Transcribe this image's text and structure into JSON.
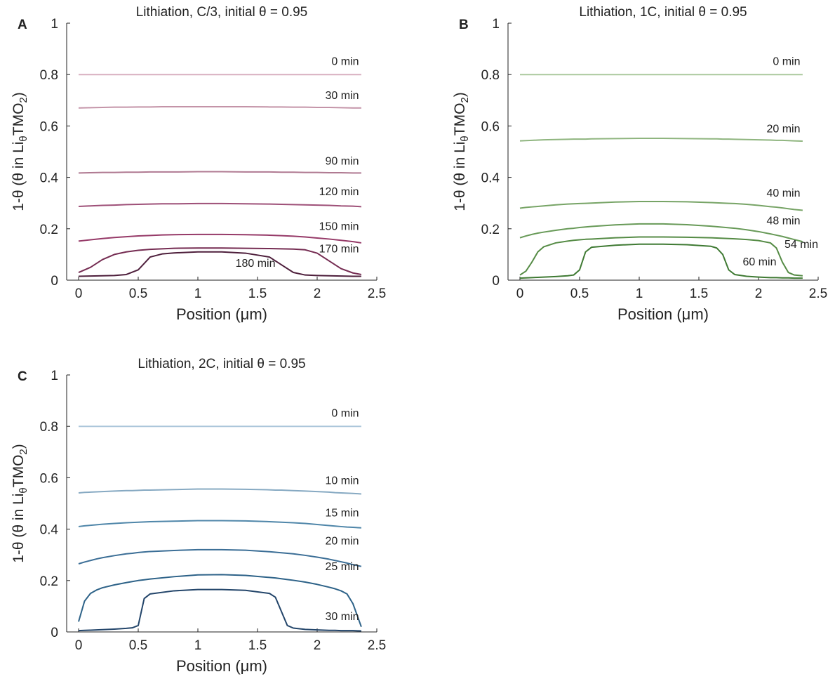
{
  "chart_data": [
    {
      "type": "line",
      "panel_label": "A",
      "title": "Lithiation, C/3, initial θ = 0.95",
      "xlabel": "Position (μm)",
      "ylabel": [
        "1-θ (θ in Li",
        "θ",
        "TMO",
        "2",
        ")"
      ],
      "xlim": [
        -0.1,
        2.5
      ],
      "ylim": [
        0,
        1
      ],
      "xticks": [
        0,
        0.5,
        1,
        1.5,
        2,
        2.5
      ],
      "yticks": [
        0,
        0.2,
        0.4,
        0.6,
        0.8,
        1
      ],
      "x": [
        0,
        0.1,
        0.2,
        0.3,
        0.4,
        0.5,
        0.6,
        0.7,
        0.8,
        1,
        1.2,
        1.4,
        1.6,
        1.7,
        1.8,
        1.9,
        2,
        2.1,
        2.2,
        2.3,
        2.37
      ],
      "series": [
        {
          "name": "0 min",
          "color": "#d8afc0",
          "values": [
            0.8,
            0.8,
            0.8,
            0.8,
            0.8,
            0.8,
            0.8,
            0.8,
            0.8,
            0.8,
            0.8,
            0.8,
            0.8,
            0.8,
            0.8,
            0.8,
            0.8,
            0.8,
            0.8,
            0.8,
            0.8
          ]
        },
        {
          "name": "30 min",
          "color": "#c494a8",
          "values": [
            0.67,
            0.671,
            0.672,
            0.673,
            0.673,
            0.674,
            0.674,
            0.675,
            0.675,
            0.675,
            0.675,
            0.675,
            0.674,
            0.674,
            0.673,
            0.673,
            0.672,
            0.672,
            0.671,
            0.67,
            0.67
          ]
        },
        {
          "name": "90 min",
          "color": "#b07a92",
          "values": [
            0.417,
            0.418,
            0.419,
            0.419,
            0.42,
            0.42,
            0.421,
            0.421,
            0.421,
            0.422,
            0.422,
            0.421,
            0.421,
            0.42,
            0.42,
            0.419,
            0.419,
            0.418,
            0.418,
            0.417,
            0.417
          ]
        },
        {
          "name": "120 min",
          "color": "#9e5078",
          "values": [
            0.287,
            0.289,
            0.291,
            0.292,
            0.294,
            0.295,
            0.296,
            0.297,
            0.297,
            0.298,
            0.298,
            0.297,
            0.296,
            0.295,
            0.294,
            0.293,
            0.292,
            0.291,
            0.289,
            0.288,
            0.286
          ]
        },
        {
          "name": "150 min",
          "color": "#963a68",
          "values": [
            0.152,
            0.157,
            0.162,
            0.166,
            0.169,
            0.172,
            0.174,
            0.176,
            0.177,
            0.178,
            0.178,
            0.177,
            0.175,
            0.173,
            0.171,
            0.168,
            0.164,
            0.16,
            0.155,
            0.15,
            0.145
          ]
        },
        {
          "name": "170 min",
          "color": "#752c52",
          "values": [
            0.03,
            0.05,
            0.08,
            0.1,
            0.11,
            0.116,
            0.12,
            0.122,
            0.124,
            0.125,
            0.125,
            0.124,
            0.123,
            0.122,
            0.121,
            0.118,
            0.105,
            0.075,
            0.045,
            0.028,
            0.022
          ]
        },
        {
          "name": "180 min",
          "color": "#4e1f3c",
          "values": [
            0.015,
            0.016,
            0.017,
            0.018,
            0.022,
            0.04,
            0.09,
            0.102,
            0.106,
            0.11,
            0.11,
            0.105,
            0.09,
            0.06,
            0.03,
            0.02,
            0.018,
            0.017,
            0.016,
            0.015,
            0.015
          ]
        }
      ]
    },
    {
      "type": "line",
      "panel_label": "B",
      "title": "Lithiation, 1C, initial θ = 0.95",
      "xlabel": "Position (μm)",
      "ylabel": [
        "1-θ (θ in Li",
        "θ",
        "TMO",
        "2",
        ")"
      ],
      "xlim": [
        -0.1,
        2.5
      ],
      "ylim": [
        0,
        1
      ],
      "xticks": [
        0,
        0.5,
        1,
        1.5,
        2,
        2.5
      ],
      "yticks": [
        0,
        0.2,
        0.4,
        0.6,
        0.8,
        1
      ],
      "x": [
        0,
        0.05,
        0.1,
        0.15,
        0.2,
        0.3,
        0.4,
        0.45,
        0.5,
        0.55,
        0.6,
        0.8,
        1,
        1.2,
        1.4,
        1.6,
        1.65,
        1.7,
        1.75,
        1.8,
        1.9,
        2,
        2.1,
        2.15,
        2.2,
        2.25,
        2.3,
        2.37
      ],
      "series": [
        {
          "name": "0 min",
          "color": "#abc99d",
          "values": [
            0.8,
            0.8,
            0.8,
            0.8,
            0.8,
            0.8,
            0.8,
            0.8,
            0.8,
            0.8,
            0.8,
            0.8,
            0.8,
            0.8,
            0.8,
            0.8,
            0.8,
            0.8,
            0.8,
            0.8,
            0.8,
            0.8,
            0.8,
            0.8,
            0.8,
            0.8,
            0.8,
            0.8
          ]
        },
        {
          "name": "20 min",
          "color": "#8fb57f",
          "values": [
            0.542,
            0.543,
            0.544,
            0.545,
            0.546,
            0.547,
            0.548,
            0.549,
            0.549,
            0.549,
            0.55,
            0.551,
            0.552,
            0.552,
            0.551,
            0.55,
            0.55,
            0.549,
            0.549,
            0.548,
            0.547,
            0.546,
            0.545,
            0.544,
            0.544,
            0.543,
            0.542,
            0.541
          ]
        },
        {
          "name": "40 min",
          "color": "#77a466",
          "values": [
            0.28,
            0.283,
            0.285,
            0.287,
            0.289,
            0.293,
            0.296,
            0.297,
            0.298,
            0.299,
            0.3,
            0.304,
            0.306,
            0.306,
            0.305,
            0.302,
            0.301,
            0.3,
            0.299,
            0.298,
            0.295,
            0.291,
            0.286,
            0.284,
            0.281,
            0.278,
            0.275,
            0.272
          ]
        },
        {
          "name": "48 min",
          "color": "#689a58",
          "values": [
            0.165,
            0.172,
            0.178,
            0.183,
            0.187,
            0.194,
            0.2,
            0.202,
            0.205,
            0.207,
            0.209,
            0.215,
            0.219,
            0.219,
            0.216,
            0.21,
            0.208,
            0.206,
            0.204,
            0.202,
            0.196,
            0.189,
            0.18,
            0.175,
            0.17,
            0.164,
            0.158,
            0.15
          ]
        },
        {
          "name": "54 min",
          "color": "#558b45",
          "values": [
            0.02,
            0.035,
            0.07,
            0.11,
            0.13,
            0.145,
            0.152,
            0.155,
            0.157,
            0.159,
            0.16,
            0.165,
            0.168,
            0.168,
            0.167,
            0.165,
            0.164,
            0.163,
            0.162,
            0.161,
            0.158,
            0.154,
            0.145,
            0.125,
            0.07,
            0.03,
            0.02,
            0.017
          ]
        },
        {
          "name": "60 min",
          "color": "#3f7a33",
          "values": [
            0.008,
            0.009,
            0.01,
            0.011,
            0.012,
            0.014,
            0.017,
            0.02,
            0.04,
            0.11,
            0.128,
            0.136,
            0.14,
            0.14,
            0.138,
            0.132,
            0.125,
            0.1,
            0.04,
            0.022,
            0.015,
            0.012,
            0.01,
            0.01,
            0.009,
            0.009,
            0.008,
            0.008
          ]
        }
      ]
    },
    {
      "type": "line",
      "panel_label": "C",
      "title": "Lithiation, 2C, initial θ = 0.95",
      "xlabel": "Position (μm)",
      "ylabel": [
        "1-θ (θ in Li",
        "θ",
        "TMO",
        "2",
        ")"
      ],
      "xlim": [
        -0.1,
        2.5
      ],
      "ylim": [
        0,
        1
      ],
      "xticks": [
        0,
        0.5,
        1,
        1.5,
        2,
        2.5
      ],
      "yticks": [
        0,
        0.2,
        0.4,
        0.6,
        0.8,
        1
      ],
      "x": [
        0,
        0.05,
        0.1,
        0.15,
        0.2,
        0.3,
        0.4,
        0.45,
        0.5,
        0.55,
        0.6,
        0.8,
        1,
        1.2,
        1.4,
        1.6,
        1.65,
        1.7,
        1.75,
        1.8,
        1.9,
        2,
        2.1,
        2.15,
        2.2,
        2.25,
        2.3,
        2.37
      ],
      "series": [
        {
          "name": "0 min",
          "color": "#abc6da",
          "values": [
            0.8,
            0.8,
            0.8,
            0.8,
            0.8,
            0.8,
            0.8,
            0.8,
            0.8,
            0.8,
            0.8,
            0.8,
            0.8,
            0.8,
            0.8,
            0.8,
            0.8,
            0.8,
            0.8,
            0.8,
            0.8,
            0.8,
            0.8,
            0.8,
            0.8,
            0.8,
            0.8,
            0.8
          ]
        },
        {
          "name": "10 min",
          "color": "#86a9c2",
          "values": [
            0.541,
            0.543,
            0.544,
            0.545,
            0.546,
            0.548,
            0.55,
            0.55,
            0.551,
            0.552,
            0.552,
            0.554,
            0.556,
            0.556,
            0.555,
            0.553,
            0.552,
            0.552,
            0.551,
            0.55,
            0.548,
            0.546,
            0.544,
            0.542,
            0.541,
            0.54,
            0.539,
            0.537
          ]
        },
        {
          "name": "15 min",
          "color": "#4f86a9",
          "values": [
            0.41,
            0.413,
            0.415,
            0.417,
            0.419,
            0.422,
            0.425,
            0.426,
            0.427,
            0.428,
            0.429,
            0.431,
            0.433,
            0.433,
            0.432,
            0.429,
            0.428,
            0.427,
            0.426,
            0.425,
            0.422,
            0.418,
            0.414,
            0.412,
            0.41,
            0.408,
            0.407,
            0.405
          ]
        },
        {
          "name": "20 min",
          "color": "#3b6e96",
          "values": [
            0.265,
            0.272,
            0.278,
            0.284,
            0.289,
            0.297,
            0.304,
            0.306,
            0.309,
            0.311,
            0.313,
            0.317,
            0.32,
            0.32,
            0.318,
            0.312,
            0.31,
            0.308,
            0.306,
            0.304,
            0.298,
            0.291,
            0.283,
            0.278,
            0.273,
            0.268,
            0.262,
            0.255
          ]
        },
        {
          "name": "25 min",
          "color": "#2d6288",
          "values": [
            0.04,
            0.12,
            0.15,
            0.163,
            0.172,
            0.183,
            0.192,
            0.196,
            0.2,
            0.203,
            0.206,
            0.215,
            0.222,
            0.223,
            0.22,
            0.212,
            0.21,
            0.207,
            0.204,
            0.201,
            0.194,
            0.185,
            0.174,
            0.168,
            0.16,
            0.148,
            0.11,
            0.02
          ]
        },
        {
          "name": "30 min",
          "color": "#23456a",
          "values": [
            0.005,
            0.006,
            0.007,
            0.008,
            0.009,
            0.011,
            0.014,
            0.016,
            0.025,
            0.13,
            0.148,
            0.16,
            0.165,
            0.165,
            0.162,
            0.15,
            0.135,
            0.08,
            0.025,
            0.015,
            0.01,
            0.008,
            0.006,
            0.006,
            0.005,
            0.005,
            0.005,
            0.004
          ]
        }
      ]
    }
  ]
}
